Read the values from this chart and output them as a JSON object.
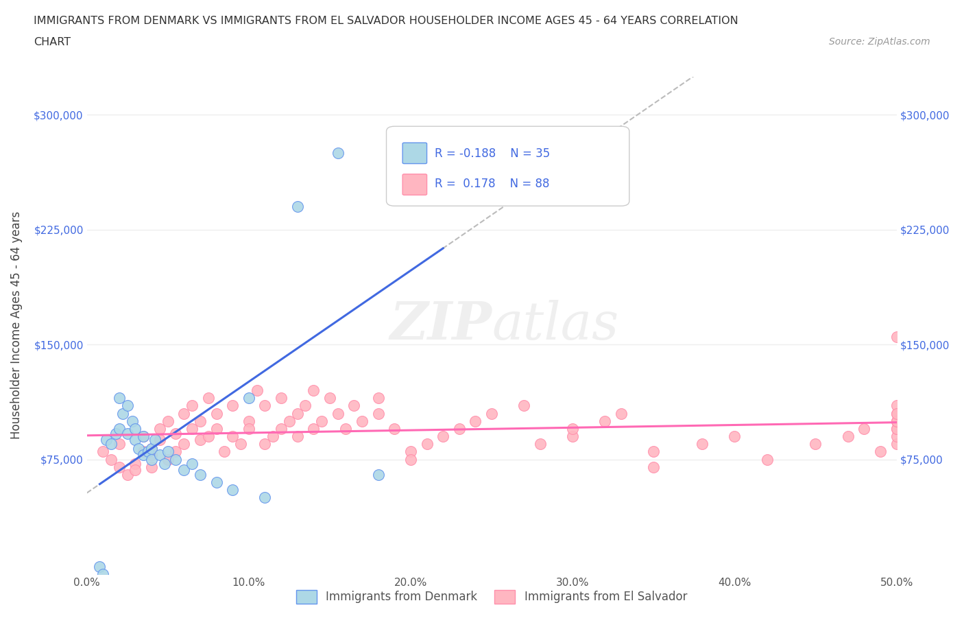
{
  "title_line1": "IMMIGRANTS FROM DENMARK VS IMMIGRANTS FROM EL SALVADOR HOUSEHOLDER INCOME AGES 45 - 64 YEARS CORRELATION",
  "title_line2": "CHART",
  "source_text": "Source: ZipAtlas.com",
  "ylabel": "Householder Income Ages 45 - 64 years",
  "xlim": [
    0.0,
    0.5
  ],
  "ylim": [
    0,
    325000
  ],
  "yticks": [
    0,
    75000,
    150000,
    225000,
    300000
  ],
  "ytick_labels": [
    "",
    "$75,000",
    "$150,000",
    "$225,000",
    "$300,000"
  ],
  "xticks": [
    0.0,
    0.1,
    0.2,
    0.3,
    0.4,
    0.5
  ],
  "xtick_labels": [
    "0.0%",
    "10.0%",
    "20.0%",
    "30.0%",
    "40.0%",
    "50.0%"
  ],
  "denmark_color": "#ADD8E6",
  "denmark_edge_color": "#6495ED",
  "el_salvador_color": "#FFB6C1",
  "el_salvador_edge_color": "#FF8FAB",
  "denmark_R": -0.188,
  "denmark_N": 35,
  "el_salvador_R": 0.178,
  "el_salvador_N": 88,
  "trend_denmark_color": "#4169E1",
  "trend_el_salvador_color": "#FF69B4",
  "trend_dashed_color": "#BBBBBB",
  "legend_box_denmark_color": "#ADD8E6",
  "legend_box_el_salvador_color": "#FFB6C1",
  "watermark_color": "#CCCCCC",
  "background_color": "#FFFFFF",
  "grid_color": "#EEEEEE",
  "tick_color": "#4169E1",
  "denmark_scatter_x": [
    0.008,
    0.01,
    0.012,
    0.015,
    0.018,
    0.02,
    0.02,
    0.022,
    0.025,
    0.025,
    0.028,
    0.03,
    0.03,
    0.032,
    0.035,
    0.035,
    0.038,
    0.04,
    0.04,
    0.042,
    0.045,
    0.048,
    0.05,
    0.055,
    0.06,
    0.065,
    0.07,
    0.08,
    0.09,
    0.1,
    0.11,
    0.13,
    0.155,
    0.18,
    0.22
  ],
  "denmark_scatter_y": [
    5000,
    0,
    88000,
    85000,
    92000,
    95000,
    115000,
    105000,
    110000,
    92000,
    100000,
    88000,
    95000,
    82000,
    90000,
    78000,
    80000,
    75000,
    82000,
    88000,
    78000,
    72000,
    80000,
    75000,
    68000,
    72000,
    65000,
    60000,
    55000,
    115000,
    50000,
    240000,
    275000,
    65000,
    282000
  ],
  "el_salvador_scatter_x": [
    0.01,
    0.015,
    0.02,
    0.02,
    0.025,
    0.03,
    0.03,
    0.035,
    0.035,
    0.04,
    0.04,
    0.04,
    0.045,
    0.045,
    0.05,
    0.05,
    0.055,
    0.055,
    0.06,
    0.06,
    0.065,
    0.065,
    0.07,
    0.07,
    0.075,
    0.075,
    0.08,
    0.08,
    0.085,
    0.09,
    0.09,
    0.095,
    0.1,
    0.1,
    0.105,
    0.11,
    0.11,
    0.115,
    0.12,
    0.12,
    0.125,
    0.13,
    0.13,
    0.135,
    0.14,
    0.14,
    0.145,
    0.15,
    0.155,
    0.16,
    0.165,
    0.17,
    0.18,
    0.18,
    0.19,
    0.2,
    0.2,
    0.21,
    0.22,
    0.23,
    0.24,
    0.25,
    0.27,
    0.28,
    0.3,
    0.3,
    0.32,
    0.33,
    0.35,
    0.35,
    0.38,
    0.4,
    0.42,
    0.45,
    0.47,
    0.48,
    0.49,
    0.5,
    0.5,
    0.5,
    0.5,
    0.5,
    0.5,
    0.5,
    0.5,
    0.5,
    0.5,
    0.5
  ],
  "el_salvador_scatter_y": [
    80000,
    75000,
    70000,
    85000,
    65000,
    72000,
    68000,
    80000,
    90000,
    78000,
    82000,
    70000,
    95000,
    88000,
    100000,
    75000,
    92000,
    80000,
    105000,
    85000,
    110000,
    95000,
    100000,
    88000,
    115000,
    90000,
    95000,
    105000,
    80000,
    110000,
    90000,
    85000,
    100000,
    95000,
    120000,
    110000,
    85000,
    90000,
    115000,
    95000,
    100000,
    105000,
    90000,
    110000,
    95000,
    120000,
    100000,
    115000,
    105000,
    95000,
    110000,
    100000,
    105000,
    115000,
    95000,
    80000,
    75000,
    85000,
    90000,
    95000,
    100000,
    105000,
    110000,
    85000,
    90000,
    95000,
    100000,
    105000,
    70000,
    80000,
    85000,
    90000,
    75000,
    85000,
    90000,
    95000,
    80000,
    85000,
    90000,
    95000,
    100000,
    95000,
    100000,
    105000,
    110000,
    100000,
    155000,
    105000
  ]
}
